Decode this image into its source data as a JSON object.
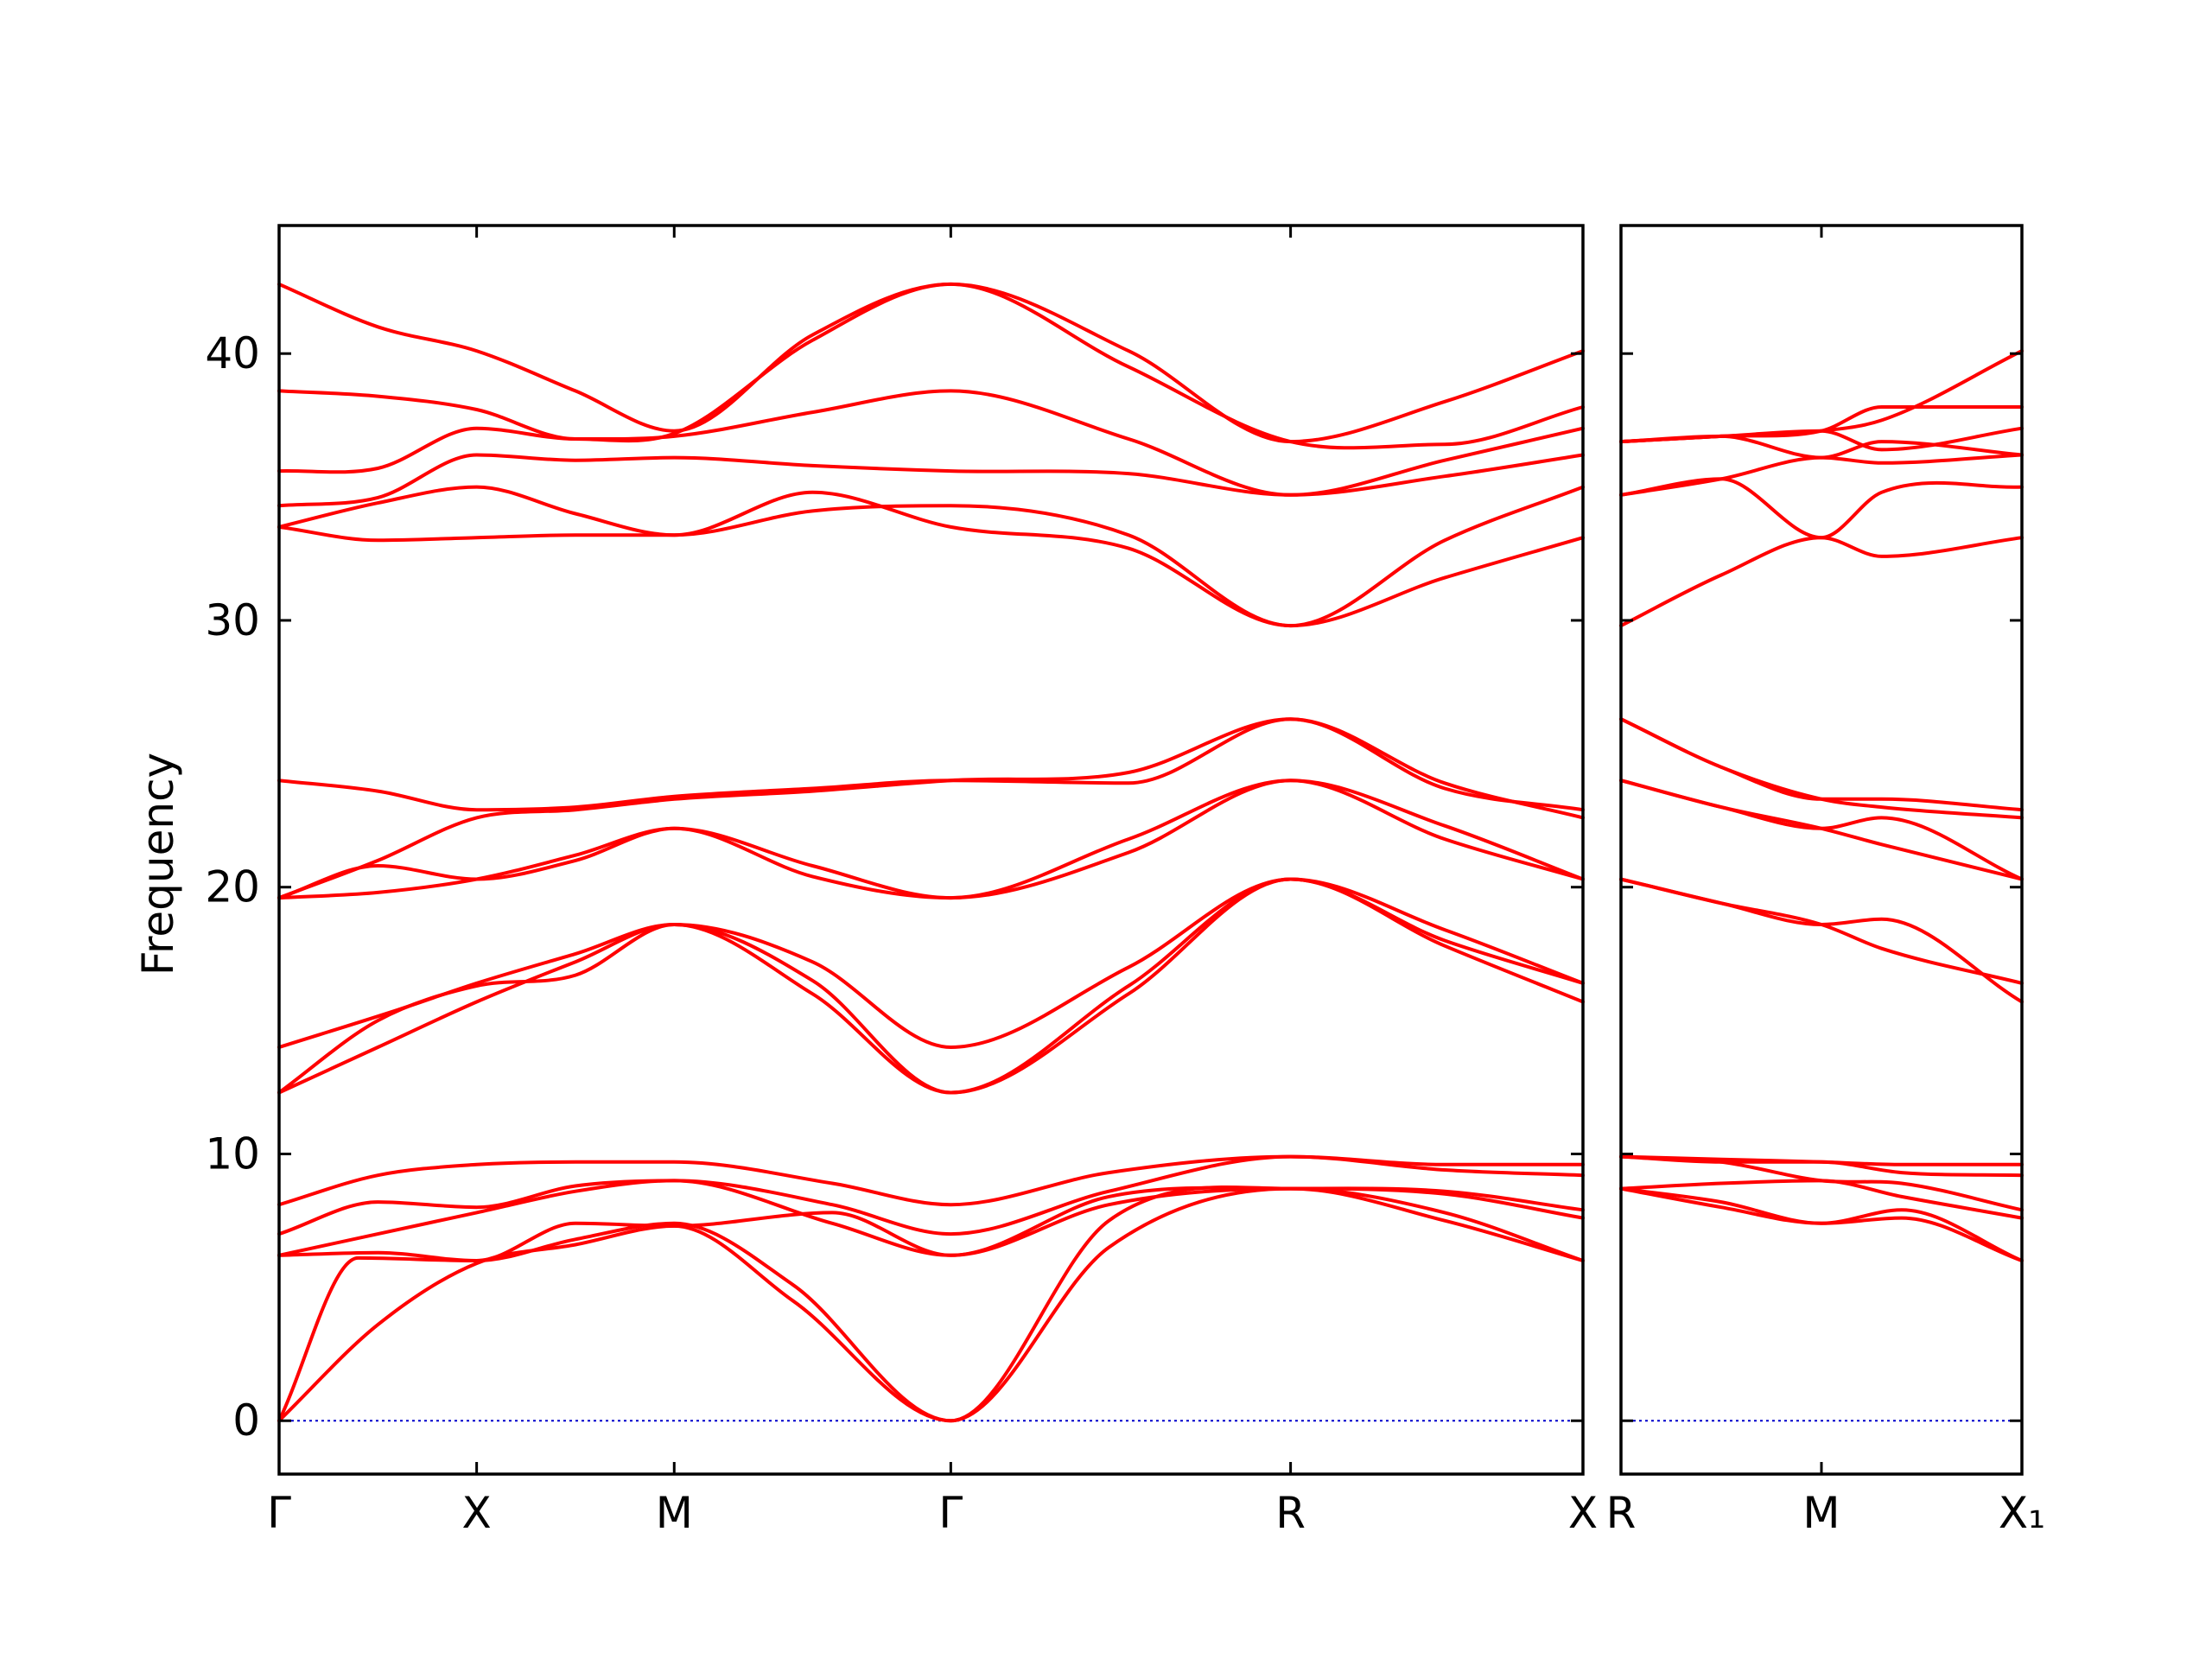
{
  "chart_data": {
    "type": "line",
    "ylabel": "Frequency",
    "ylim": [
      -2,
      44.8
    ],
    "yticks": [
      0,
      10,
      20,
      30,
      40
    ],
    "line_color": "#ff0000",
    "zero_line_color": "#0000cc",
    "panels": [
      {
        "x_range": [
          0,
          6.6
        ],
        "xticks": [
          {
            "x": 0,
            "label": "Γ"
          },
          {
            "x": 1,
            "label": "X"
          },
          {
            "x": 2,
            "label": "M"
          },
          {
            "x": 3.4,
            "label": "Γ"
          },
          {
            "x": 5.12,
            "label": "R"
          },
          {
            "x": 6.6,
            "label": "X"
          }
        ],
        "series": [
          {
            "x": [
              0,
              0.5,
              1,
              1.5,
              2,
              2.6,
              3.4,
              4.2,
              5.12,
              5.9,
              6.6
            ],
            "values": [
              0,
              3.6,
              5.9,
              6.6,
              7.3,
              4.5,
              0,
              6.5,
              8.7,
              7.5,
              6.0
            ]
          },
          {
            "x": [
              0,
              0.4,
              1,
              1.5,
              2,
              2.6,
              3.4,
              4.2,
              5.12,
              5.9,
              6.6
            ],
            "values": [
              0,
              6.1,
              6.0,
              6.8,
              7.4,
              5.1,
              0,
              7.5,
              8.7,
              7.8,
              6.0
            ]
          },
          {
            "x": [
              0,
              0.5,
              1,
              1.5,
              2,
              2.8,
              3.4,
              4.2,
              5.12,
              5.9,
              6.6
            ],
            "values": [
              6.2,
              6.3,
              6.0,
              7.4,
              7.3,
              7.8,
              6.2,
              8.4,
              8.7,
              8.5,
              7.6
            ]
          },
          {
            "x": [
              0,
              0.5,
              1,
              1.5,
              2,
              2.8,
              3.4,
              4.2,
              5.12,
              5.9,
              6.6
            ],
            "values": [
              6.2,
              7.0,
              7.8,
              8.6,
              9.0,
              7.4,
              6.2,
              8.1,
              8.7,
              8.6,
              7.9
            ]
          },
          {
            "x": [
              0,
              0.5,
              1,
              1.5,
              2,
              2.8,
              3.4,
              4.2,
              5.12,
              5.9,
              6.6
            ],
            "values": [
              7.0,
              8.2,
              8.0,
              8.8,
              9.0,
              8.1,
              7.0,
              8.6,
              9.9,
              9.4,
              9.2
            ]
          },
          {
            "x": [
              0,
              0.5,
              1,
              1.5,
              2,
              2.8,
              3.4,
              4.2,
              5.12,
              5.9,
              6.6
            ],
            "values": [
              8.1,
              9.2,
              9.6,
              9.7,
              9.7,
              8.9,
              8.1,
              9.3,
              9.9,
              9.6,
              9.6
            ]
          },
          {
            "x": [
              0,
              0.5,
              1,
              1.5,
              2,
              2.7,
              3.4,
              4.3,
              5.12,
              5.9,
              6.6
            ],
            "values": [
              12.3,
              14.0,
              15.7,
              17.2,
              18.6,
              16.0,
              12.3,
              16.0,
              20.3,
              17.8,
              15.7
            ]
          },
          {
            "x": [
              0,
              0.5,
              1,
              1.5,
              2,
              2.7,
              3.4,
              4.3,
              5.12,
              5.9,
              6.6
            ],
            "values": [
              12.3,
              15.0,
              16.3,
              16.7,
              18.6,
              16.5,
              12.3,
              16.3,
              20.3,
              18.0,
              16.4
            ]
          },
          {
            "x": [
              0,
              0.6,
              1,
              1.5,
              2,
              2.7,
              3.4,
              4.3,
              5.12,
              5.9,
              6.6
            ],
            "values": [
              14.0,
              15.4,
              16.4,
              17.5,
              18.6,
              17.2,
              14.0,
              17.0,
              20.3,
              18.4,
              16.4
            ]
          },
          {
            "x": [
              0,
              0.5,
              1,
              1.5,
              2,
              2.7,
              3.4,
              4.3,
              5.12,
              5.9,
              6.6
            ],
            "values": [
              19.6,
              19.8,
              20.3,
              21.2,
              22.2,
              20.4,
              19.6,
              21.3,
              24.0,
              21.8,
              20.3
            ]
          },
          {
            "x": [
              0,
              0.5,
              1,
              1.5,
              2,
              2.7,
              3.4,
              4.3,
              5.12,
              5.9,
              6.6
            ],
            "values": [
              19.6,
              20.8,
              20.3,
              21.0,
              22.2,
              20.8,
              19.6,
              21.8,
              24.0,
              22.3,
              20.3
            ]
          },
          {
            "x": [
              0,
              0.5,
              1,
              1.5,
              2,
              2.7,
              3.4,
              4.3,
              5.12,
              5.9,
              6.6
            ],
            "values": [
              19.6,
              21.0,
              22.6,
              22.9,
              23.3,
              23.6,
              24.0,
              24.3,
              26.3,
              23.9,
              22.6
            ]
          },
          {
            "x": [
              0,
              0.5,
              1,
              1.5,
              2,
              2.7,
              3.4,
              4.3,
              5.12,
              5.9,
              6.6
            ],
            "values": [
              24.0,
              23.6,
              22.9,
              23.0,
              23.4,
              23.7,
              24.0,
              23.9,
              26.3,
              23.7,
              22.9
            ]
          },
          {
            "x": [
              0,
              0.5,
              1,
              1.5,
              2,
              2.7,
              3.4,
              4.3,
              5.12,
              5.9,
              6.6
            ],
            "values": [
              33.5,
              33.0,
              33.1,
              33.2,
              33.2,
              34.1,
              34.3,
              33.2,
              29.8,
              31.6,
              33.1
            ]
          },
          {
            "x": [
              0,
              0.5,
              1,
              1.5,
              2,
              2.7,
              3.4,
              4.3,
              5.12,
              5.9,
              6.6
            ],
            "values": [
              33.5,
              34.4,
              35.0,
              34.0,
              33.2,
              34.8,
              33.5,
              32.7,
              29.8,
              33.0,
              35.0
            ]
          },
          {
            "x": [
              0,
              0.5,
              1,
              1.5,
              2,
              2.7,
              3.4,
              4.3,
              5.12,
              5.9,
              6.6
            ],
            "values": [
              34.3,
              34.6,
              36.2,
              36.0,
              36.1,
              35.8,
              35.6,
              35.5,
              34.7,
              35.4,
              36.2
            ]
          },
          {
            "x": [
              0,
              0.5,
              1,
              1.5,
              2,
              2.7,
              3.4,
              4.3,
              5.12,
              5.9,
              6.6
            ],
            "values": [
              35.6,
              35.7,
              37.2,
              36.8,
              36.9,
              37.8,
              38.6,
              36.8,
              34.7,
              36.0,
              37.2
            ]
          },
          {
            "x": [
              0,
              0.5,
              1,
              1.5,
              2,
              2.7,
              3.4,
              4.3,
              5.12,
              5.9,
              6.6
            ],
            "values": [
              38.6,
              38.4,
              37.9,
              36.8,
              37.0,
              40.5,
              42.6,
              39.5,
              36.7,
              36.6,
              38.0
            ]
          },
          {
            "x": [
              0,
              0.5,
              1,
              1.5,
              2,
              2.7,
              3.4,
              4.3,
              5.12,
              5.9,
              6.6
            ],
            "values": [
              42.6,
              41.0,
              40.1,
              38.6,
              37.1,
              40.7,
              42.6,
              40.1,
              36.7,
              38.2,
              40.1
            ]
          }
        ]
      },
      {
        "x_range": [
          0,
          2.0
        ],
        "xticks": [
          {
            "x": 0,
            "label": "R"
          },
          {
            "x": 1,
            "label": "M"
          },
          {
            "x": 2,
            "label": "X₁"
          }
        ],
        "series": [
          {
            "x": [
              0,
              0.5,
              1,
              1.4,
              2
            ],
            "values": [
              8.7,
              8.0,
              7.4,
              7.6,
              6.0
            ]
          },
          {
            "x": [
              0,
              0.5,
              1,
              1.4,
              2
            ],
            "values": [
              8.7,
              8.2,
              7.4,
              7.9,
              6.0
            ]
          },
          {
            "x": [
              0,
              0.5,
              1,
              1.4,
              2
            ],
            "values": [
              8.7,
              8.9,
              9.0,
              8.4,
              7.6
            ]
          },
          {
            "x": [
              0,
              0.5,
              1,
              1.4,
              2
            ],
            "values": [
              9.9,
              9.7,
              9.0,
              8.9,
              7.9
            ]
          },
          {
            "x": [
              0,
              0.5,
              1,
              1.4,
              2
            ],
            "values": [
              9.9,
              9.7,
              9.7,
              9.3,
              9.2
            ]
          },
          {
            "x": [
              0,
              0.5,
              1,
              1.4,
              2
            ],
            "values": [
              9.9,
              9.8,
              9.7,
              9.6,
              9.6
            ]
          },
          {
            "x": [
              0,
              0.5,
              1,
              1.3,
              2
            ],
            "values": [
              20.3,
              19.4,
              18.6,
              18.8,
              15.7
            ]
          },
          {
            "x": [
              0,
              0.5,
              1,
              1.3,
              2
            ],
            "values": [
              20.3,
              19.4,
              18.6,
              17.7,
              16.4
            ]
          },
          {
            "x": [
              0,
              0.5,
              1,
              1.3,
              2
            ],
            "values": [
              24.0,
              23.0,
              22.2,
              22.6,
              20.3
            ]
          },
          {
            "x": [
              0,
              0.5,
              1,
              1.3,
              2
            ],
            "values": [
              24.0,
              23.0,
              22.2,
              21.6,
              20.3
            ]
          },
          {
            "x": [
              0,
              0.5,
              1,
              1.3,
              2
            ],
            "values": [
              26.3,
              24.5,
              23.3,
              23.3,
              22.9
            ]
          },
          {
            "x": [
              0,
              0.5,
              1,
              1.3,
              2
            ],
            "values": [
              26.3,
              24.5,
              23.3,
              23.0,
              22.6
            ]
          },
          {
            "x": [
              0,
              0.5,
              1,
              1.3,
              2
            ],
            "values": [
              29.8,
              31.7,
              33.1,
              32.4,
              33.1
            ]
          },
          {
            "x": [
              0,
              0.5,
              1,
              1.3,
              2
            ],
            "values": [
              34.7,
              35.3,
              36.1,
              35.9,
              36.2
            ]
          },
          {
            "x": [
              0,
              0.5,
              1,
              1.3,
              2
            ],
            "values": [
              34.7,
              35.3,
              33.1,
              34.8,
              35.0
            ]
          },
          {
            "x": [
              0,
              0.5,
              1,
              1.3,
              2
            ],
            "values": [
              36.7,
              36.9,
              37.1,
              36.4,
              37.2
            ]
          },
          {
            "x": [
              0,
              0.5,
              1,
              1.3,
              2
            ],
            "values": [
              36.7,
              36.9,
              36.1,
              36.7,
              36.2
            ]
          },
          {
            "x": [
              0,
              0.5,
              1,
              1.3,
              2
            ],
            "values": [
              36.7,
              36.9,
              37.1,
              38.0,
              38.0
            ]
          },
          {
            "x": [
              0,
              0.5,
              1,
              1.3,
              2
            ],
            "values": [
              36.7,
              36.9,
              37.1,
              37.5,
              40.1
            ]
          }
        ]
      }
    ]
  }
}
